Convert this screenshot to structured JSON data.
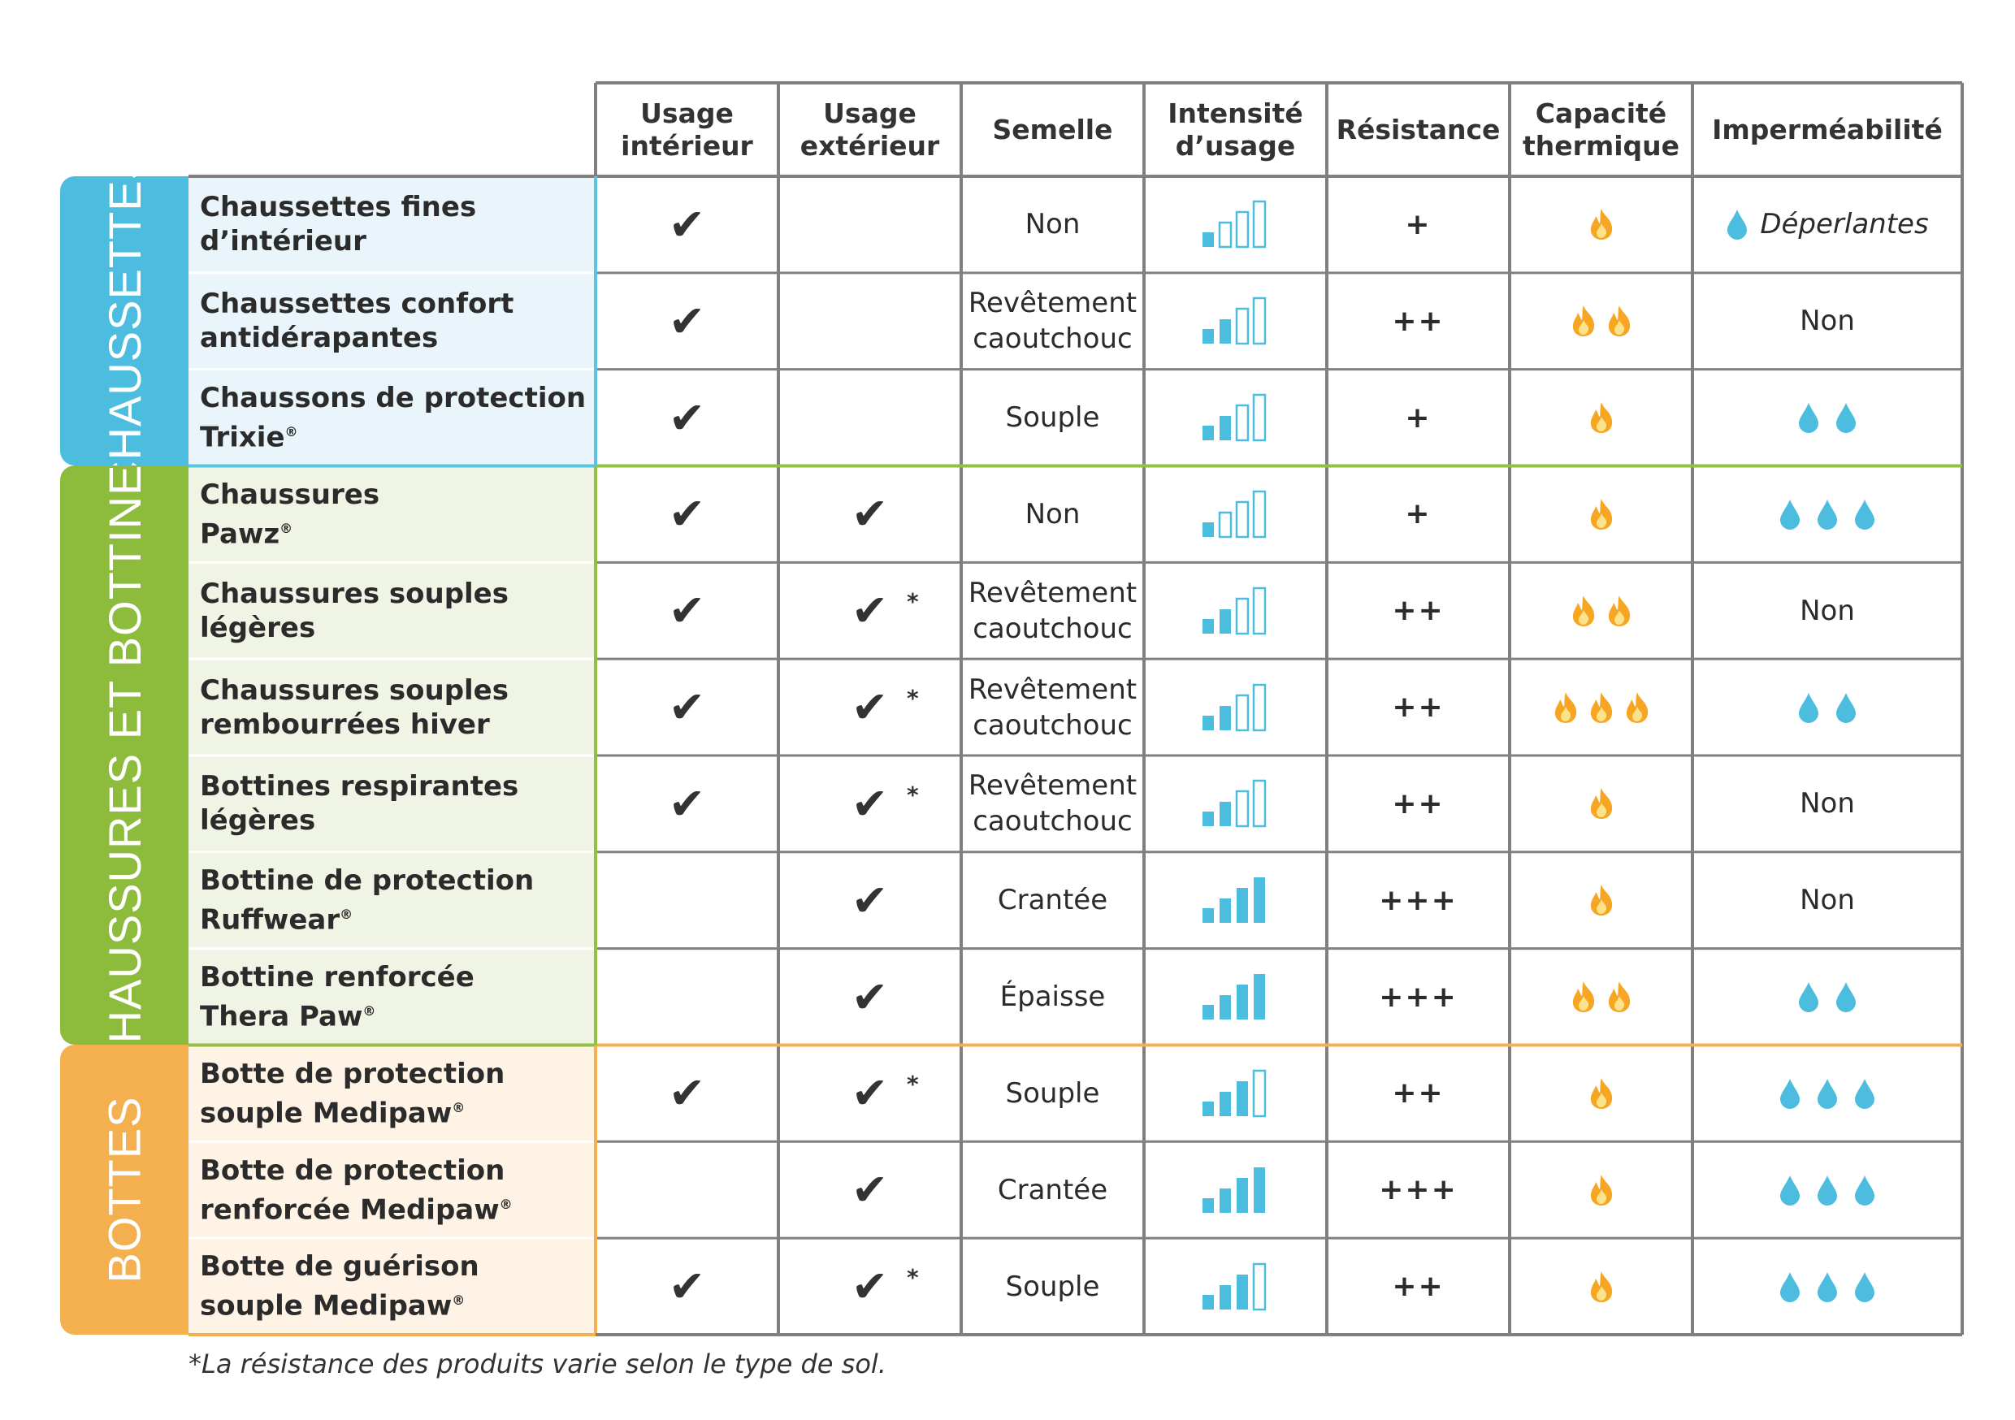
{
  "headers": [
    "Usage intérieur",
    "Usage extérieur",
    "Semelle",
    "Intensité d’usage",
    "Résistance",
    "Capacité thermique",
    "Imperméabilité"
  ],
  "header_lines": [
    [
      "Usage",
      "intérieur"
    ],
    [
      "Usage",
      "extérieur"
    ],
    [
      "Semelle"
    ],
    [
      "Intensité",
      "d’usage"
    ],
    [
      "Résistance"
    ],
    [
      "Capacité",
      "thermique"
    ],
    [
      "Imperméabilité"
    ]
  ],
  "groups": [
    {
      "label": "CHAUSSETTES",
      "color": "#4cbddf",
      "row_bg": "#e9f5fa",
      "border": "#5cc3e3",
      "rows": [
        0,
        2
      ]
    },
    {
      "label": "CHAUSSURES ET BOTTINES",
      "color": "#8dbb3c",
      "row_bg": "#eff4e4",
      "border": "#93bf44",
      "rows": [
        3,
        8
      ]
    },
    {
      "label": "BOTTES",
      "color": "#f4b04e",
      "row_bg": "#fef3e4",
      "border": "#f4b04e",
      "rows": [
        9,
        11
      ]
    }
  ],
  "colors": {
    "grid": "#808080",
    "intensity": "#4cbddf",
    "drop": "#4cbddf",
    "flame_outer": "#f6a623",
    "flame_inner": "#fde28c"
  },
  "rows": [
    {
      "name_lines": [
        "Chaussettes fines",
        "d’intérieur"
      ],
      "reg": "",
      "indoor": true,
      "outdoor": false,
      "outdoor_star": false,
      "sole": [
        "Non"
      ],
      "intensity": 1,
      "resistance": "+",
      "thermal": 1,
      "water": 1,
      "water_text": "Déperlantes"
    },
    {
      "name_lines": [
        "Chaussettes confort",
        "antidérapantes"
      ],
      "reg": "",
      "indoor": true,
      "outdoor": false,
      "outdoor_star": false,
      "sole": [
        "Revêtement",
        "caoutchouc"
      ],
      "intensity": 2,
      "resistance": "++",
      "thermal": 2,
      "water": 0,
      "water_text": "Non"
    },
    {
      "name_lines": [
        "Chaussons de protection",
        "Trixie"
      ],
      "reg": "®",
      "indoor": true,
      "outdoor": false,
      "outdoor_star": false,
      "sole": [
        "Souple"
      ],
      "intensity": 2,
      "resistance": "+",
      "thermal": 1,
      "water": 2,
      "water_text": ""
    },
    {
      "name_lines": [
        "Chaussures",
        "Pawz"
      ],
      "reg": "®",
      "indoor": true,
      "outdoor": true,
      "outdoor_star": false,
      "sole": [
        "Non"
      ],
      "intensity": 1,
      "resistance": "+",
      "thermal": 1,
      "water": 3,
      "water_text": ""
    },
    {
      "name_lines": [
        "Chaussures souples",
        "légères"
      ],
      "reg": "",
      "indoor": true,
      "outdoor": true,
      "outdoor_star": true,
      "sole": [
        "Revêtement",
        "caoutchouc"
      ],
      "intensity": 2,
      "resistance": "++",
      "thermal": 2,
      "water": 0,
      "water_text": "Non"
    },
    {
      "name_lines": [
        "Chaussures souples",
        "rembourrées hiver"
      ],
      "reg": "",
      "indoor": true,
      "outdoor": true,
      "outdoor_star": true,
      "sole": [
        "Revêtement",
        "caoutchouc"
      ],
      "intensity": 2,
      "resistance": "++",
      "thermal": 3,
      "water": 2,
      "water_text": ""
    },
    {
      "name_lines": [
        "Bottines respirantes",
        "légères"
      ],
      "reg": "",
      "indoor": true,
      "outdoor": true,
      "outdoor_star": true,
      "sole": [
        "Revêtement",
        "caoutchouc"
      ],
      "intensity": 2,
      "resistance": "++",
      "thermal": 1,
      "water": 0,
      "water_text": "Non"
    },
    {
      "name_lines": [
        "Bottine de protection",
        "Ruffwear"
      ],
      "reg": "®",
      "indoor": false,
      "outdoor": true,
      "outdoor_star": false,
      "sole": [
        "Crantée"
      ],
      "intensity": 4,
      "resistance": "+++",
      "thermal": 1,
      "water": 0,
      "water_text": "Non"
    },
    {
      "name_lines": [
        "Bottine renforcée",
        "Thera Paw"
      ],
      "reg": "®",
      "indoor": false,
      "outdoor": true,
      "outdoor_star": false,
      "sole": [
        "Épaisse"
      ],
      "intensity": 4,
      "resistance": "+++",
      "thermal": 2,
      "water": 2,
      "water_text": ""
    },
    {
      "name_lines": [
        "Botte de protection",
        "souple Medipaw"
      ],
      "reg": "®",
      "indoor": true,
      "outdoor": true,
      "outdoor_star": true,
      "sole": [
        "Souple"
      ],
      "intensity": 3,
      "resistance": "++",
      "thermal": 1,
      "water": 3,
      "water_text": ""
    },
    {
      "name_lines": [
        "Botte de protection",
        "renforcée Medipaw"
      ],
      "reg": "®",
      "indoor": false,
      "outdoor": true,
      "outdoor_star": false,
      "sole": [
        "Crantée"
      ],
      "intensity": 4,
      "resistance": "+++",
      "thermal": 1,
      "water": 3,
      "water_text": ""
    },
    {
      "name_lines": [
        "Botte de guérison",
        "souple Medipaw"
      ],
      "reg": "®",
      "indoor": true,
      "outdoor": true,
      "outdoor_star": true,
      "sole": [
        "Souple"
      ],
      "intensity": 3,
      "resistance": "++",
      "thermal": 1,
      "water": 3,
      "water_text": ""
    }
  ],
  "symbols": {
    "check": "✔",
    "star": "*"
  },
  "footnote": "*La résistance des produits varie selon le type de sol.",
  "chart_data": {
    "type": "table",
    "columns": [
      "Usage intérieur",
      "Usage extérieur",
      "Semelle",
      "Intensité d’usage",
      "Résistance",
      "Capacité thermique",
      "Imperméabilité"
    ],
    "intensity_scale_max": 4,
    "thermal_scale_max": 3,
    "water_scale_max": 3
  }
}
